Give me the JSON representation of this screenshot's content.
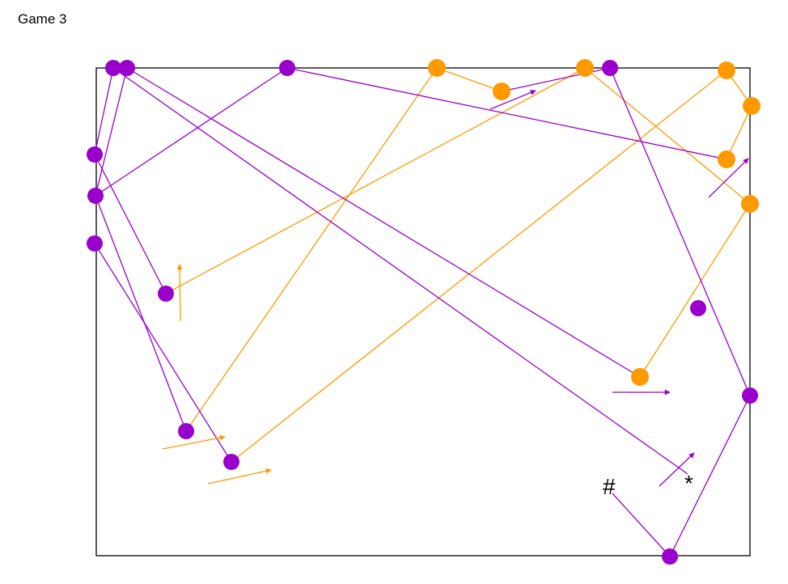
{
  "title": "Game 3",
  "colors": {
    "purple": "#9900cc",
    "orange": "#ff9900",
    "frame": "#000000",
    "background": "#ffffff"
  },
  "symbols": {
    "hash": "#",
    "star": "*"
  }
}
